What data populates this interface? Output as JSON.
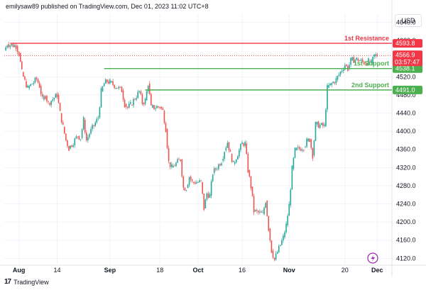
{
  "header": {
    "publisher_line": "emilysaw89 published on TradingView.com, Dec 01, 2023 11:02 UTC+8"
  },
  "footer": {
    "brand": "TradingView",
    "logo_text": "17"
  },
  "currency": "USD",
  "colors": {
    "up": "#26a69a",
    "down": "#ef5350",
    "resistance": "#f23645",
    "support": "#4caf50",
    "last_price": "#f23645",
    "grid": "#f0f3fa"
  },
  "chart_data": {
    "type": "candlestick",
    "title": "",
    "y_axis": {
      "ticks": [
        4120.0,
        4160.0,
        4200.0,
        4240.0,
        4280.0,
        4320.0,
        4360.0,
        4400.0,
        4440.0,
        4480.0,
        4520.0,
        4560.0,
        4600.0,
        4640.0
      ],
      "ylim": [
        4108,
        4658
      ]
    },
    "x_axis": {
      "ticks": [
        {
          "label": "Aug",
          "date": "2023-08-01",
          "month": true
        },
        {
          "label": "14",
          "date": "2023-08-14",
          "month": false
        },
        {
          "label": "Sep",
          "date": "2023-09-01",
          "month": true
        },
        {
          "label": "18",
          "date": "2023-09-18",
          "month": false
        },
        {
          "label": "Oct",
          "date": "2023-10-01",
          "month": true
        },
        {
          "label": "16",
          "date": "2023-10-16",
          "month": false
        },
        {
          "label": "Nov",
          "date": "2023-11-01",
          "month": true
        },
        {
          "label": "20",
          "date": "2023-11-20",
          "month": false
        },
        {
          "label": "Dec",
          "date": "2023-12-01",
          "month": true
        }
      ],
      "xlim": [
        "2023-07-27",
        "2023-12-06"
      ]
    },
    "levels": [
      {
        "name": "1st Resistance",
        "price": 4593.8,
        "price_label": "4593.8",
        "kind": "resistance",
        "start": "2023-07-29"
      },
      {
        "name": "1st Support",
        "price": 4538.1,
        "price_label": "4538.1",
        "kind": "support",
        "start": "2023-08-30"
      },
      {
        "name": "2nd Support",
        "price": 4491.0,
        "price_label": "4491.0",
        "kind": "support",
        "start": "2023-09-13"
      }
    ],
    "last_price": {
      "price": 4566.9,
      "price_label": "4566.9",
      "countdown": "03:57:47"
    },
    "price_path": [
      [
        "2023-07-27",
        4578
      ],
      [
        "2023-07-28",
        4592
      ],
      [
        "2023-07-31",
        4588
      ],
      [
        "2023-08-01",
        4572
      ],
      [
        "2023-08-02",
        4530
      ],
      [
        "2023-08-03",
        4510
      ],
      [
        "2023-08-04",
        4495
      ],
      [
        "2023-08-07",
        4515
      ],
      [
        "2023-08-08",
        4500
      ],
      [
        "2023-08-09",
        4470
      ],
      [
        "2023-08-10",
        4478
      ],
      [
        "2023-08-11",
        4462
      ],
      [
        "2023-08-14",
        4480
      ],
      [
        "2023-08-15",
        4440
      ],
      [
        "2023-08-16",
        4410
      ],
      [
        "2023-08-17",
        4380
      ],
      [
        "2023-08-18",
        4362
      ],
      [
        "2023-08-21",
        4390
      ],
      [
        "2023-08-22",
        4385
      ],
      [
        "2023-08-23",
        4425
      ],
      [
        "2023-08-24",
        4380
      ],
      [
        "2023-08-25",
        4395
      ],
      [
        "2023-08-28",
        4430
      ],
      [
        "2023-08-29",
        4488
      ],
      [
        "2023-08-30",
        4505
      ],
      [
        "2023-08-31",
        4510
      ],
      [
        "2023-09-01",
        4508
      ],
      [
        "2023-09-05",
        4490
      ],
      [
        "2023-09-06",
        4460
      ],
      [
        "2023-09-07",
        4452
      ],
      [
        "2023-09-08",
        4458
      ],
      [
        "2023-09-11",
        4488
      ],
      [
        "2023-09-12",
        4462
      ],
      [
        "2023-09-13",
        4468
      ],
      [
        "2023-09-14",
        4505
      ],
      [
        "2023-09-15",
        4452
      ],
      [
        "2023-09-18",
        4454
      ],
      [
        "2023-09-19",
        4445
      ],
      [
        "2023-09-20",
        4405
      ],
      [
        "2023-09-21",
        4332
      ],
      [
        "2023-09-22",
        4320
      ],
      [
        "2023-09-25",
        4338
      ],
      [
        "2023-09-26",
        4275
      ],
      [
        "2023-09-27",
        4275
      ],
      [
        "2023-09-28",
        4300
      ],
      [
        "2023-09-29",
        4288
      ],
      [
        "2023-10-02",
        4288
      ],
      [
        "2023-10-03",
        4230
      ],
      [
        "2023-10-04",
        4263
      ],
      [
        "2023-10-05",
        4258
      ],
      [
        "2023-10-06",
        4308
      ],
      [
        "2023-10-09",
        4335
      ],
      [
        "2023-10-10",
        4358
      ],
      [
        "2023-10-11",
        4376
      ],
      [
        "2023-10-12",
        4350
      ],
      [
        "2023-10-13",
        4328
      ],
      [
        "2023-10-16",
        4373
      ],
      [
        "2023-10-17",
        4373
      ],
      [
        "2023-10-18",
        4314
      ],
      [
        "2023-10-19",
        4278
      ],
      [
        "2023-10-20",
        4224
      ],
      [
        "2023-10-23",
        4217
      ],
      [
        "2023-10-24",
        4247
      ],
      [
        "2023-10-25",
        4186
      ],
      [
        "2023-10-26",
        4137
      ],
      [
        "2023-10-27",
        4117
      ],
      [
        "2023-10-30",
        4166
      ],
      [
        "2023-10-31",
        4193
      ],
      [
        "2023-11-01",
        4237
      ],
      [
        "2023-11-02",
        4317
      ],
      [
        "2023-11-03",
        4358
      ],
      [
        "2023-11-06",
        4365
      ],
      [
        "2023-11-07",
        4378
      ],
      [
        "2023-11-08",
        4382
      ],
      [
        "2023-11-09",
        4347
      ],
      [
        "2023-11-10",
        4415
      ],
      [
        "2023-11-13",
        4411
      ],
      [
        "2023-11-14",
        4496
      ],
      [
        "2023-11-15",
        4502
      ],
      [
        "2023-11-16",
        4508
      ],
      [
        "2023-11-17",
        4514
      ],
      [
        "2023-11-20",
        4547
      ],
      [
        "2023-11-21",
        4538
      ],
      [
        "2023-11-22",
        4556
      ],
      [
        "2023-11-24",
        4559
      ],
      [
        "2023-11-27",
        4550
      ],
      [
        "2023-11-28",
        4554
      ],
      [
        "2023-11-29",
        4550
      ],
      [
        "2023-11-30",
        4567
      ],
      [
        "2023-12-01",
        4567
      ]
    ]
  }
}
